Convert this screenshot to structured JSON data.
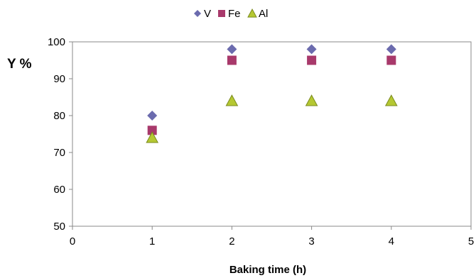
{
  "chart_data": {
    "type": "scatter",
    "title": "",
    "xlabel": "Baking time (h)",
    "ylabel": "Y %",
    "xlim": [
      0,
      5
    ],
    "ylim": [
      50,
      100
    ],
    "xticks": [
      "0",
      "1",
      "2",
      "3",
      "4",
      "5"
    ],
    "yticks": [
      "50",
      "60",
      "70",
      "80",
      "90",
      "100"
    ],
    "grid": false,
    "legend_position": "top-center",
    "series": [
      {
        "name": "V",
        "marker": "diamond",
        "color": "#6B6BAE",
        "x": [
          1,
          2,
          3,
          4
        ],
        "y": [
          80,
          98,
          98,
          98
        ]
      },
      {
        "name": "Fe",
        "marker": "square",
        "color": "#A8396B",
        "x": [
          1,
          2,
          3,
          4
        ],
        "y": [
          76,
          95,
          95,
          95
        ]
      },
      {
        "name": "Al",
        "marker": "triangle",
        "color": "#B5C832",
        "x": [
          1,
          2,
          3,
          4
        ],
        "y": [
          74,
          84,
          84,
          84
        ]
      }
    ]
  }
}
